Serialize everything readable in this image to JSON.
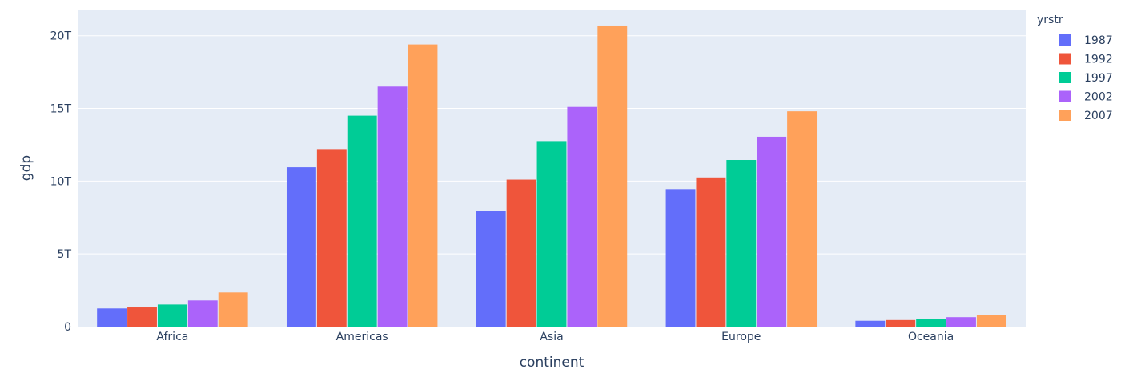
{
  "chart_data": {
    "type": "bar",
    "categories": [
      "Africa",
      "Americas",
      "Asia",
      "Europe",
      "Oceania"
    ],
    "series": [
      {
        "name": "1987",
        "color": "#636efa",
        "values": [
          1250000000000.0,
          10950000000000.0,
          7950000000000.0,
          9450000000000.0,
          400000000000.0
        ]
      },
      {
        "name": "1992",
        "color": "#ef553b",
        "values": [
          1320000000000.0,
          12200000000000.0,
          10100000000000.0,
          10250000000000.0,
          450000000000.0
        ]
      },
      {
        "name": "1997",
        "color": "#00cc96",
        "values": [
          1520000000000.0,
          14500000000000.0,
          12750000000000.0,
          11450000000000.0,
          550000000000.0
        ]
      },
      {
        "name": "2002",
        "color": "#ab63fa",
        "values": [
          1800000000000.0,
          16500000000000.0,
          15100000000000.0,
          13050000000000.0,
          650000000000.0
        ]
      },
      {
        "name": "2007",
        "color": "#ffa15a",
        "values": [
          2350000000000.0,
          19400000000000.0,
          20700000000000.0,
          14800000000000.0,
          800000000000.0
        ]
      }
    ],
    "title": "",
    "xlabel": "continent",
    "ylabel": "gdp",
    "ylim": [
      0,
      21800000000000.0
    ],
    "yticks": [
      {
        "value": 0,
        "label": "0"
      },
      {
        "value": 5000000000000.0,
        "label": "5T"
      },
      {
        "value": 10000000000000.0,
        "label": "10T"
      },
      {
        "value": 15000000000000.0,
        "label": "15T"
      },
      {
        "value": 20000000000000.0,
        "label": "20T"
      }
    ],
    "legend_title": "yrstr",
    "legend_position": "top-right",
    "grid": true,
    "plot_bgcolor": "#e5ecf6"
  }
}
